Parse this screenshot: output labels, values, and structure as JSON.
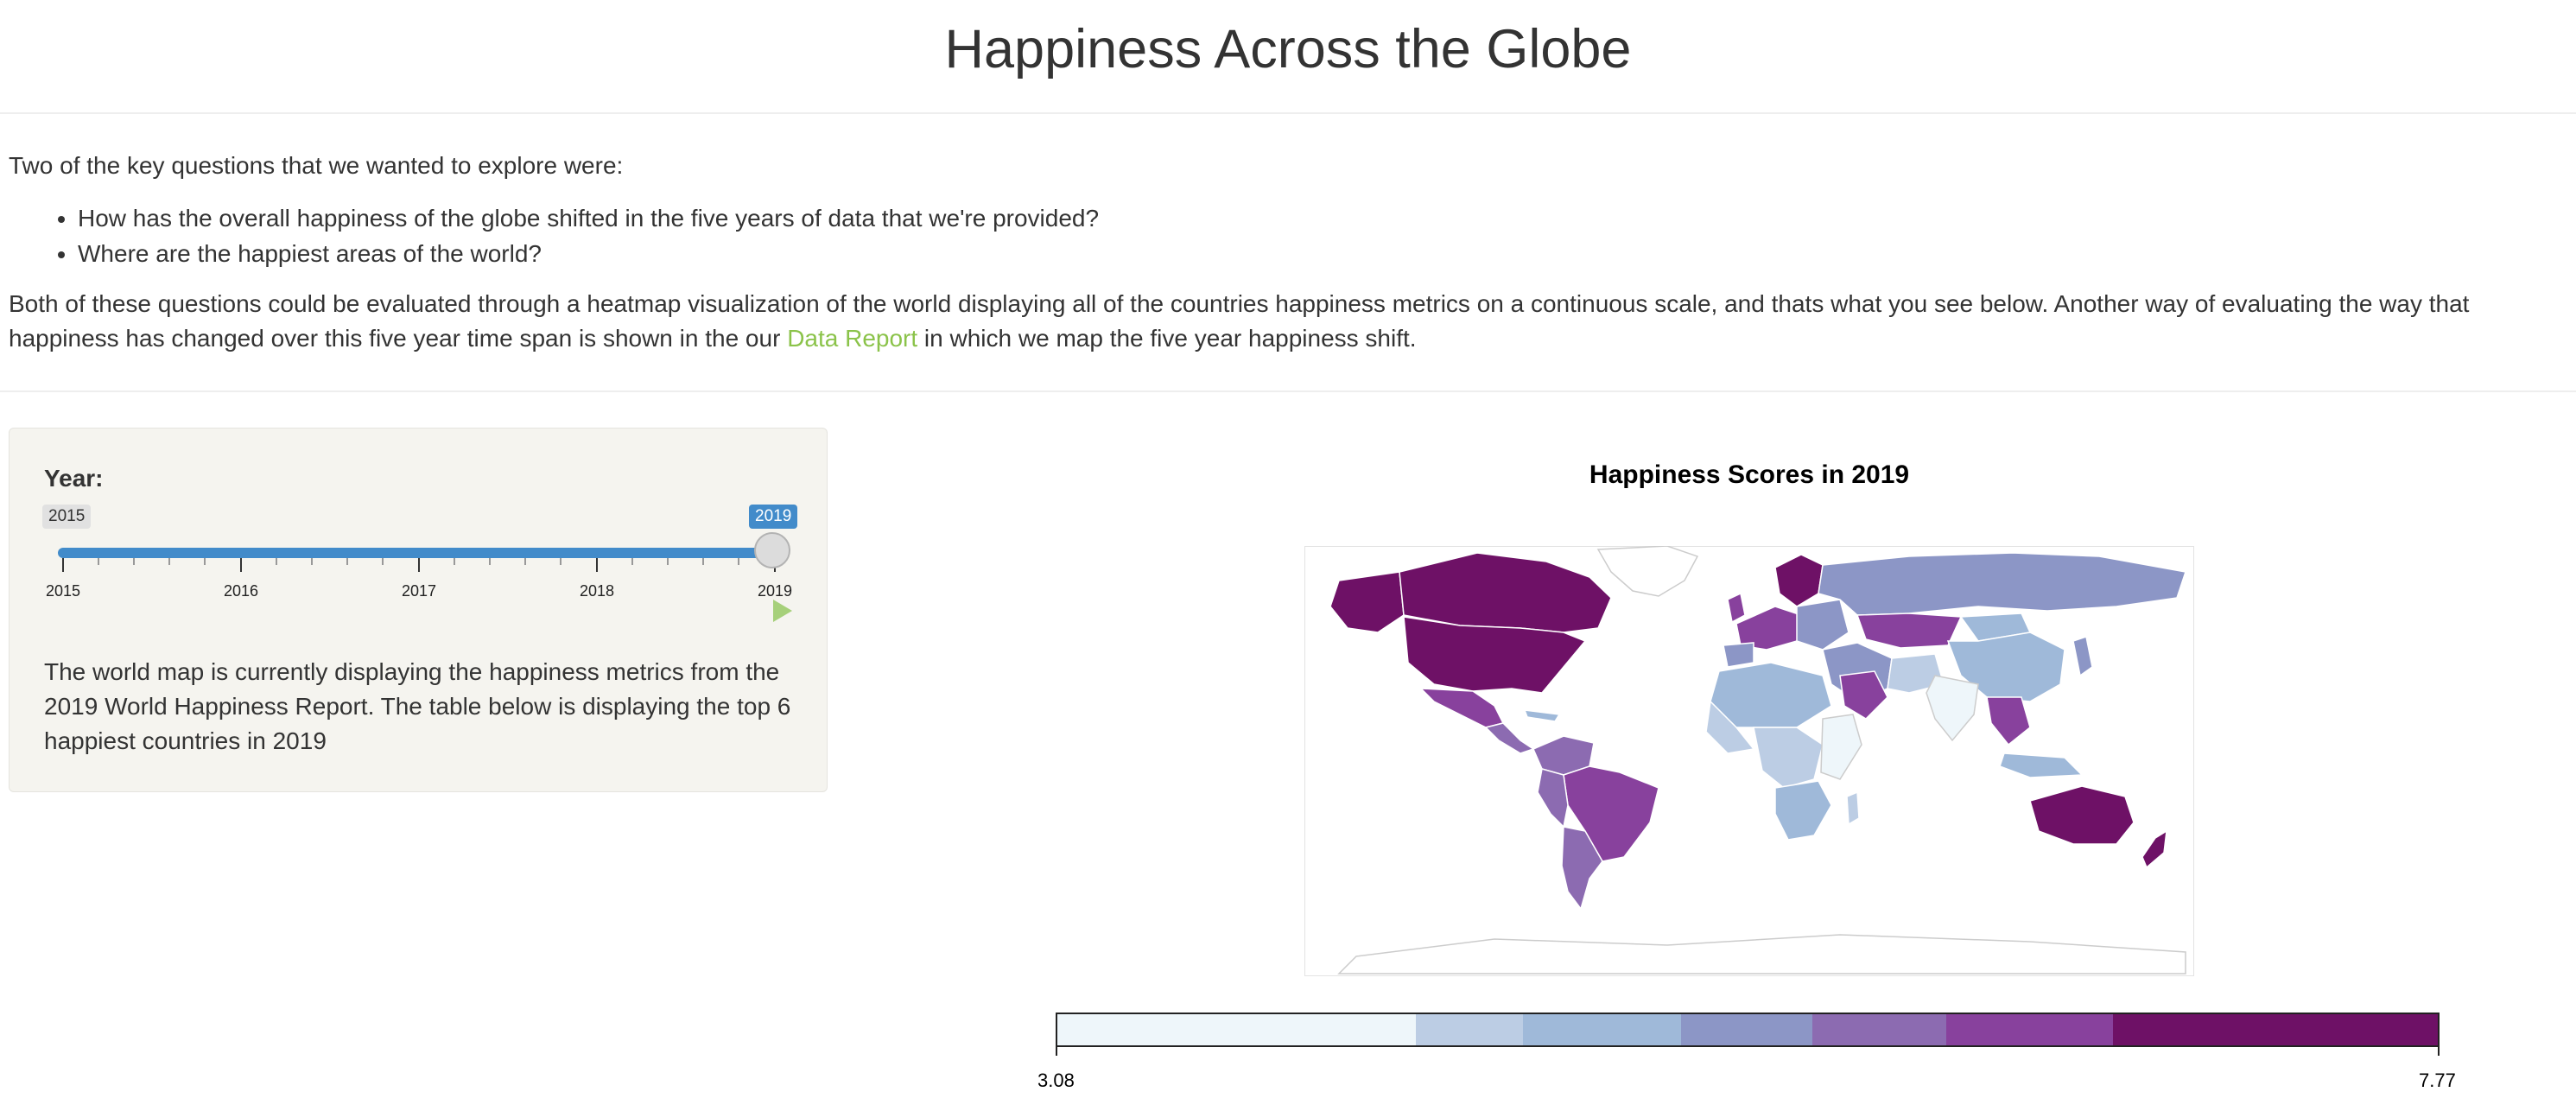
{
  "page": {
    "title": "Happiness Across the Globe",
    "intro": "Two of the key questions that we wanted to explore were:",
    "questions": [
      "How has the overall happiness of the globe shifted in the five years of data that we're provided?",
      "Where are the happiest areas of the world?"
    ],
    "paragraph_before_link": "Both of these questions could be evaluated through a heatmap visualization of the world displaying all of the countries happiness metrics on a continuous scale, and thats what you see below. Another way of evaluating the way that happiness has changed over this five year time span is shown in the our ",
    "link_text": "Data Report",
    "paragraph_after_link": " in which we map the five year happiness shift."
  },
  "slider": {
    "label": "Year:",
    "min_badge": "2015",
    "value_badge": "2019",
    "ticks": [
      "2015",
      "2016",
      "2017",
      "2018",
      "2019"
    ],
    "value": 2019,
    "min": 2015,
    "max": 2019,
    "play_icon": "play-icon",
    "accent_color": "#428bca"
  },
  "panel": {
    "description": "The world map is currently displaying the happiness metrics from the 2019 World Happiness Report. The table below is displaying the top 6 happiest countries in 2019"
  },
  "map": {
    "title": "Happiness Scores in 2019",
    "legend_min": "3.08",
    "legend_max": "7.77",
    "colors": [
      "#eef6fa",
      "#bccde4",
      "#9fb9d9",
      "#8c96c6",
      "#8c6bb1",
      "#88419d",
      "#6e1166"
    ]
  }
}
